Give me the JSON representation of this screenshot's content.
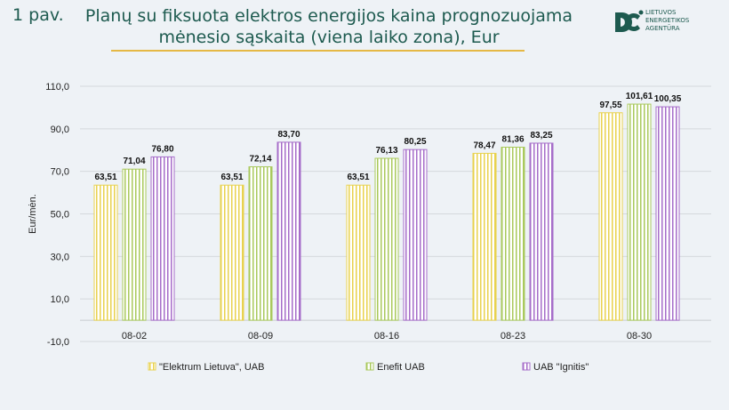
{
  "figure_label": "1 pav.",
  "title_line1": "Planų su fiksuota elektros energijos kaina prognozuojama",
  "title_line2": "mėnesio sąskaita (viena laiko zona), Eur",
  "logo": {
    "lines": [
      "LIETUVOS",
      "ENERGETIKOS",
      "AGENTŪRA"
    ]
  },
  "chart_data": {
    "type": "bar",
    "title": "Planų su fiksuota elektros energijos kaina prognozuojama mėnesio sąskaita (viena laiko zona), Eur",
    "xlabel": "",
    "ylabel": "Eur/mėn.",
    "ylim": [
      -10,
      110
    ],
    "yticks": [
      "110,0",
      "90,0",
      "70,0",
      "50,0",
      "30,0",
      "10,0",
      "-10,0"
    ],
    "ytick_values": [
      110,
      90,
      70,
      50,
      30,
      10,
      -10
    ],
    "grid": true,
    "legend_position": "bottom",
    "categories": [
      "08-02",
      "08-09",
      "08-16",
      "08-23",
      "08-30"
    ],
    "series": [
      {
        "name": "\"Elektrum Lietuva\", UAB",
        "color": "#e8d24e",
        "values": [
          63.51,
          63.51,
          63.51,
          78.47,
          97.55
        ],
        "labels": [
          "63,51",
          "63,51",
          "63,51",
          "78,47",
          "97,55"
        ]
      },
      {
        "name": "Enefit UAB",
        "color": "#a9c95c",
        "values": [
          71.04,
          72.14,
          76.13,
          81.36,
          101.61
        ],
        "labels": [
          "71,04",
          "72,14",
          "76,13",
          "81,36",
          "101,61"
        ]
      },
      {
        "name": "UAB \"Ignitis\"",
        "color": "#a66dc9",
        "values": [
          76.8,
          83.7,
          80.25,
          83.25,
          100.35
        ],
        "labels": [
          "76,80",
          "83,70",
          "80,25",
          "83,25",
          "100,35"
        ]
      }
    ]
  }
}
